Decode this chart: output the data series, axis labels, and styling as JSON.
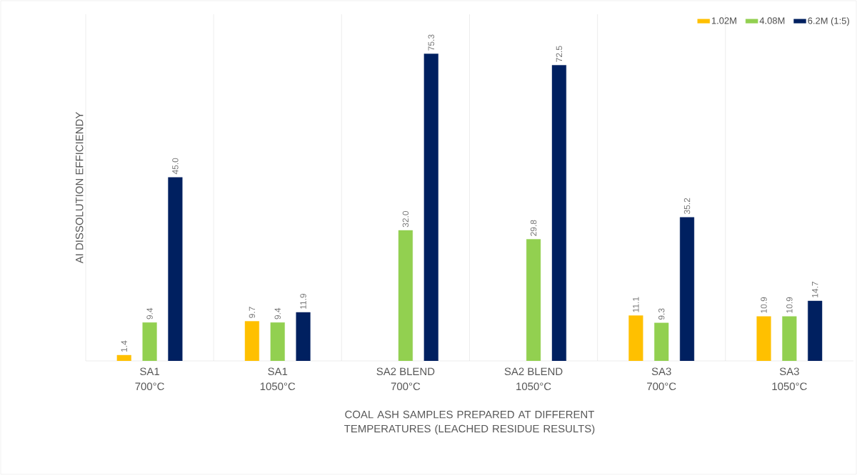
{
  "chart_data": {
    "type": "bar",
    "ylabel": "AI DISSOLUTION EFFICIENDY",
    "xlabel": "COAL ASH SAMPLES PREPARED AT DIFFERENT TEMPERATURES (LEACHED RESIDUE RESULTS)",
    "categories": [
      "SA1 700°C",
      "SA1 1050°C",
      "SA2 BLEND 700°C",
      "SA2 BLEND 1050°C",
      "SA3 700°C",
      "SA3 1050°C"
    ],
    "series": [
      {
        "name": "1.02M",
        "color": "#ffc000",
        "values": [
          1.4,
          9.7,
          null,
          null,
          11.1,
          10.9
        ],
        "value_labels": [
          "1.4",
          "9.7",
          null,
          null,
          "11.1",
          "10.9"
        ]
      },
      {
        "name": "4.08M",
        "color": "#92d050",
        "values": [
          9.4,
          9.4,
          32.0,
          29.8,
          9.3,
          10.9
        ],
        "value_labels": [
          "9.4",
          "9.4",
          "32.0",
          "29.8",
          "9.3",
          "10.9"
        ]
      },
      {
        "name": "6.2M (1:5)",
        "color": "#002060",
        "values": [
          45.0,
          11.9,
          75.3,
          72.5,
          35.2,
          14.7
        ],
        "value_labels": [
          "45.0",
          "11.9",
          "75.3",
          "72.5",
          "35.2",
          "14.7"
        ]
      }
    ],
    "ylim": [
      0,
      85
    ],
    "grid": "x",
    "legend": "top right",
    "tick_labels": "x"
  }
}
